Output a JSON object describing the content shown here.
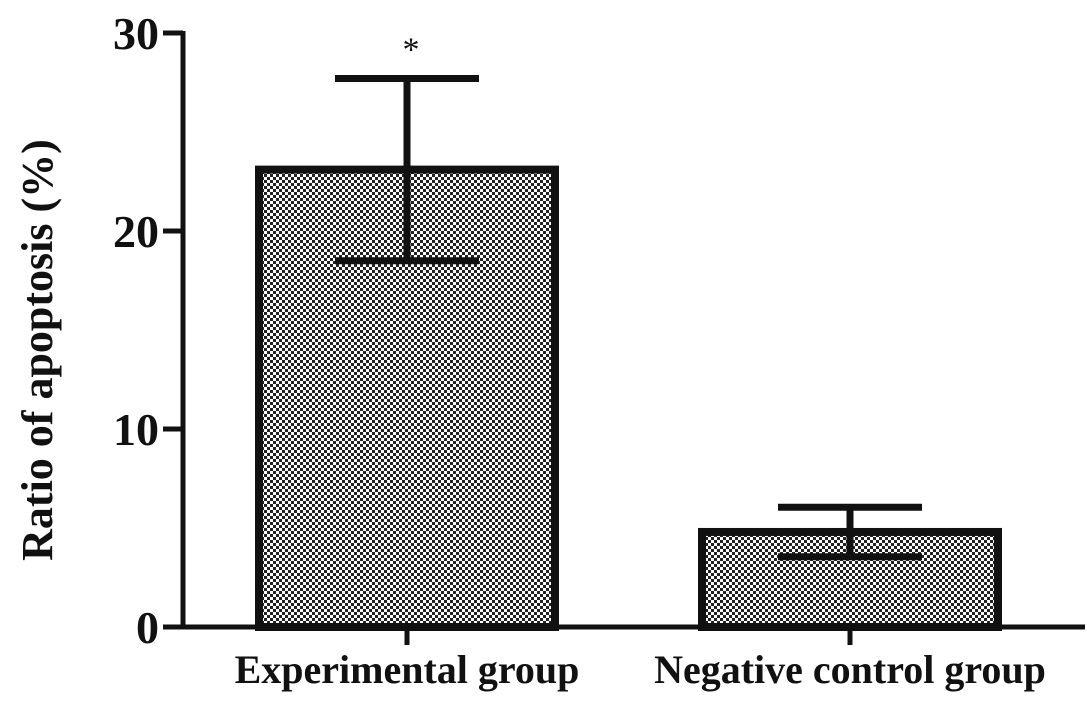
{
  "chart_data": {
    "type": "bar",
    "categories": [
      "Experimental group",
      "Negative control group"
    ],
    "values": [
      23.1,
      4.8
    ],
    "error": [
      4.6,
      1.25
    ],
    "annotations": [
      "*",
      ""
    ],
    "ylabel": "Ratio of apoptosis (%)",
    "xlabel": "",
    "ylim": [
      0,
      30
    ],
    "yticks": [
      0,
      10,
      20,
      30
    ],
    "yticks_labels": [
      "0",
      "10",
      "20",
      "30"
    ],
    "bar_fill": "checker",
    "colors": {
      "stroke": "#111111",
      "pattern_dark": "#222222",
      "pattern_light": "#ffffff"
    },
    "grid": false,
    "legend": "none"
  }
}
